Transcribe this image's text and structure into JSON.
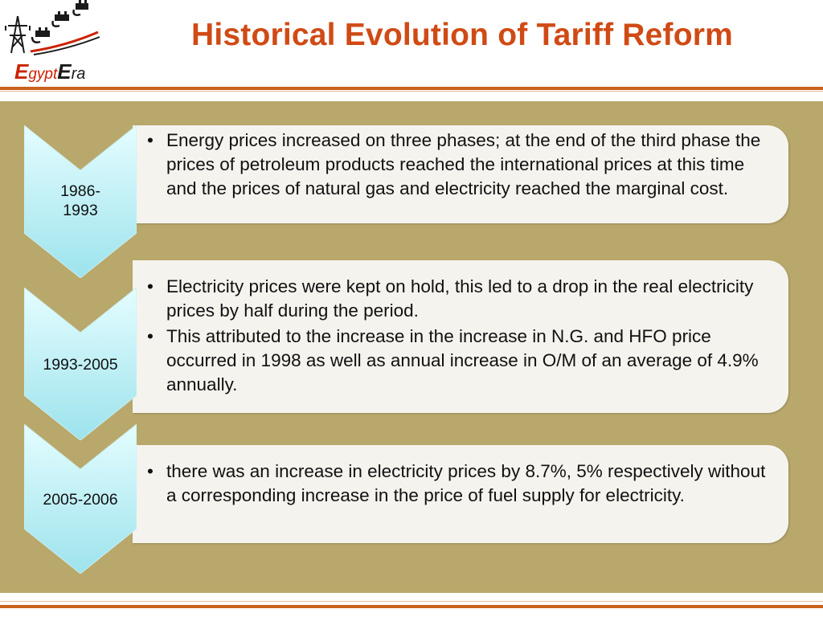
{
  "logo": {
    "text_big_e": "E",
    "text_gypt": "gypt",
    "text_big_e2": "E",
    "text_ra": "ra",
    "colors": {
      "red": "#cc2200",
      "dark": "#1a1a1a"
    },
    "icon": "power-tower-plug-icon"
  },
  "header": {
    "title": "Historical Evolution of Tariff Reform",
    "title_color": "#d04a15",
    "rule_color": "#c8611c"
  },
  "panel": {
    "background": "#b9a86b"
  },
  "timeline": [
    {
      "period": "1986-\n1993",
      "period_line1": "1986-",
      "period_line2": "1993",
      "bullets": [
        " Energy prices increased on three phases; at the end of the third phase the prices of petroleum products reached the international prices at this time and the prices of natural gas and electricity reached the marginal cost."
      ]
    },
    {
      "period": "1993-2005",
      "bullets": [
        "Electricity prices were kept on hold, this led to a drop  in the real electricity prices by half during the period.",
        "This attributed to the increase in the increase in N.G. and HFO price occurred in 1998 as well as annual increase in O/M of an average of  4.9% annually."
      ]
    },
    {
      "period": "2005-2006",
      "bullets": [
        "there was an increase in electricity prices by 8.7%, 5% respectively without a corresponding increase in the price of fuel supply for electricity."
      ]
    }
  ],
  "bullet_glyph": "•",
  "chevron_colors": {
    "light": "#d9fbff",
    "dark": "#9fe6ee"
  }
}
